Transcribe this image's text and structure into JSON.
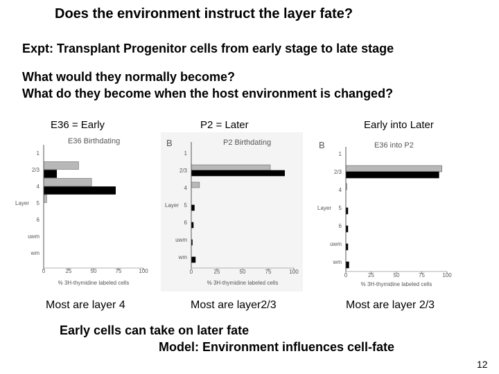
{
  "slide": {
    "title": "Does the environment instruct the layer fate?",
    "experiment": "Expt:  Transplant Progenitor cells from early stage to late stage",
    "question1": "What would they normally become?",
    "question2": "What do they become when the host environment is changed?",
    "conclusion": "Early cells can take on later fate",
    "model": "Model: Environment influences cell-fate",
    "page_number": "12"
  },
  "panels": [
    {
      "caption": "E36 = Early",
      "bottom": "Most are layer 4"
    },
    {
      "caption": "P2 = Later",
      "bottom": "Most are layer2/3"
    },
    {
      "caption": "Early into Later",
      "bottom": "Most are layer 2/3"
    }
  ],
  "colors": {
    "bar_gray": "#b8b8b8",
    "bar_black": "#000000"
  },
  "chart_data": [
    {
      "type": "bar",
      "orientation": "horizontal",
      "title": "E36 Birthdating",
      "panel_letter": "",
      "ylabel": "Layer",
      "xlabel": "% 3H-thymidine labeled cells",
      "categories": [
        "1",
        "2/3",
        "4",
        "5",
        "6",
        "uwm",
        "wm"
      ],
      "xticks": [
        "0",
        "25",
        "50",
        "75",
        "100"
      ],
      "xlim": [
        0,
        100
      ],
      "series": [
        {
          "values": [
            0,
            35,
            48,
            3,
            0,
            0,
            0
          ]
        },
        {
          "values": [
            0,
            13,
            72,
            0,
            0,
            0,
            0
          ]
        }
      ]
    },
    {
      "type": "bar",
      "orientation": "horizontal",
      "title": "P2 Birthdating",
      "panel_letter": "B",
      "ylabel": "Layer",
      "xlabel": "% 3H-thymidine labeled cells",
      "categories": [
        "1",
        "2/3",
        "4",
        "5",
        "6",
        "uwm",
        "wm"
      ],
      "xticks": [
        "0",
        "25",
        "50",
        "75",
        "100"
      ],
      "xlim": [
        0,
        100
      ],
      "series": [
        {
          "values": [
            0,
            77,
            8,
            0,
            0,
            0,
            0
          ]
        },
        {
          "values": [
            0,
            91,
            0,
            3,
            2,
            1,
            4
          ]
        }
      ]
    },
    {
      "type": "bar",
      "orientation": "horizontal",
      "title": "E36 into P2",
      "panel_letter": "B",
      "ylabel": "Layer",
      "xlabel": "% 3H-thymidine labeled cells",
      "categories": [
        "1",
        "2/3",
        "4",
        "5",
        "6",
        "uwm",
        "wm"
      ],
      "xticks": [
        "0",
        "25",
        "50",
        "75",
        "100"
      ],
      "xlim": [
        0,
        100
      ],
      "series": [
        {
          "values": [
            0,
            95,
            1,
            0,
            0,
            0,
            0
          ]
        },
        {
          "values": [
            0,
            92,
            0,
            2,
            2,
            2,
            3
          ]
        }
      ]
    }
  ]
}
